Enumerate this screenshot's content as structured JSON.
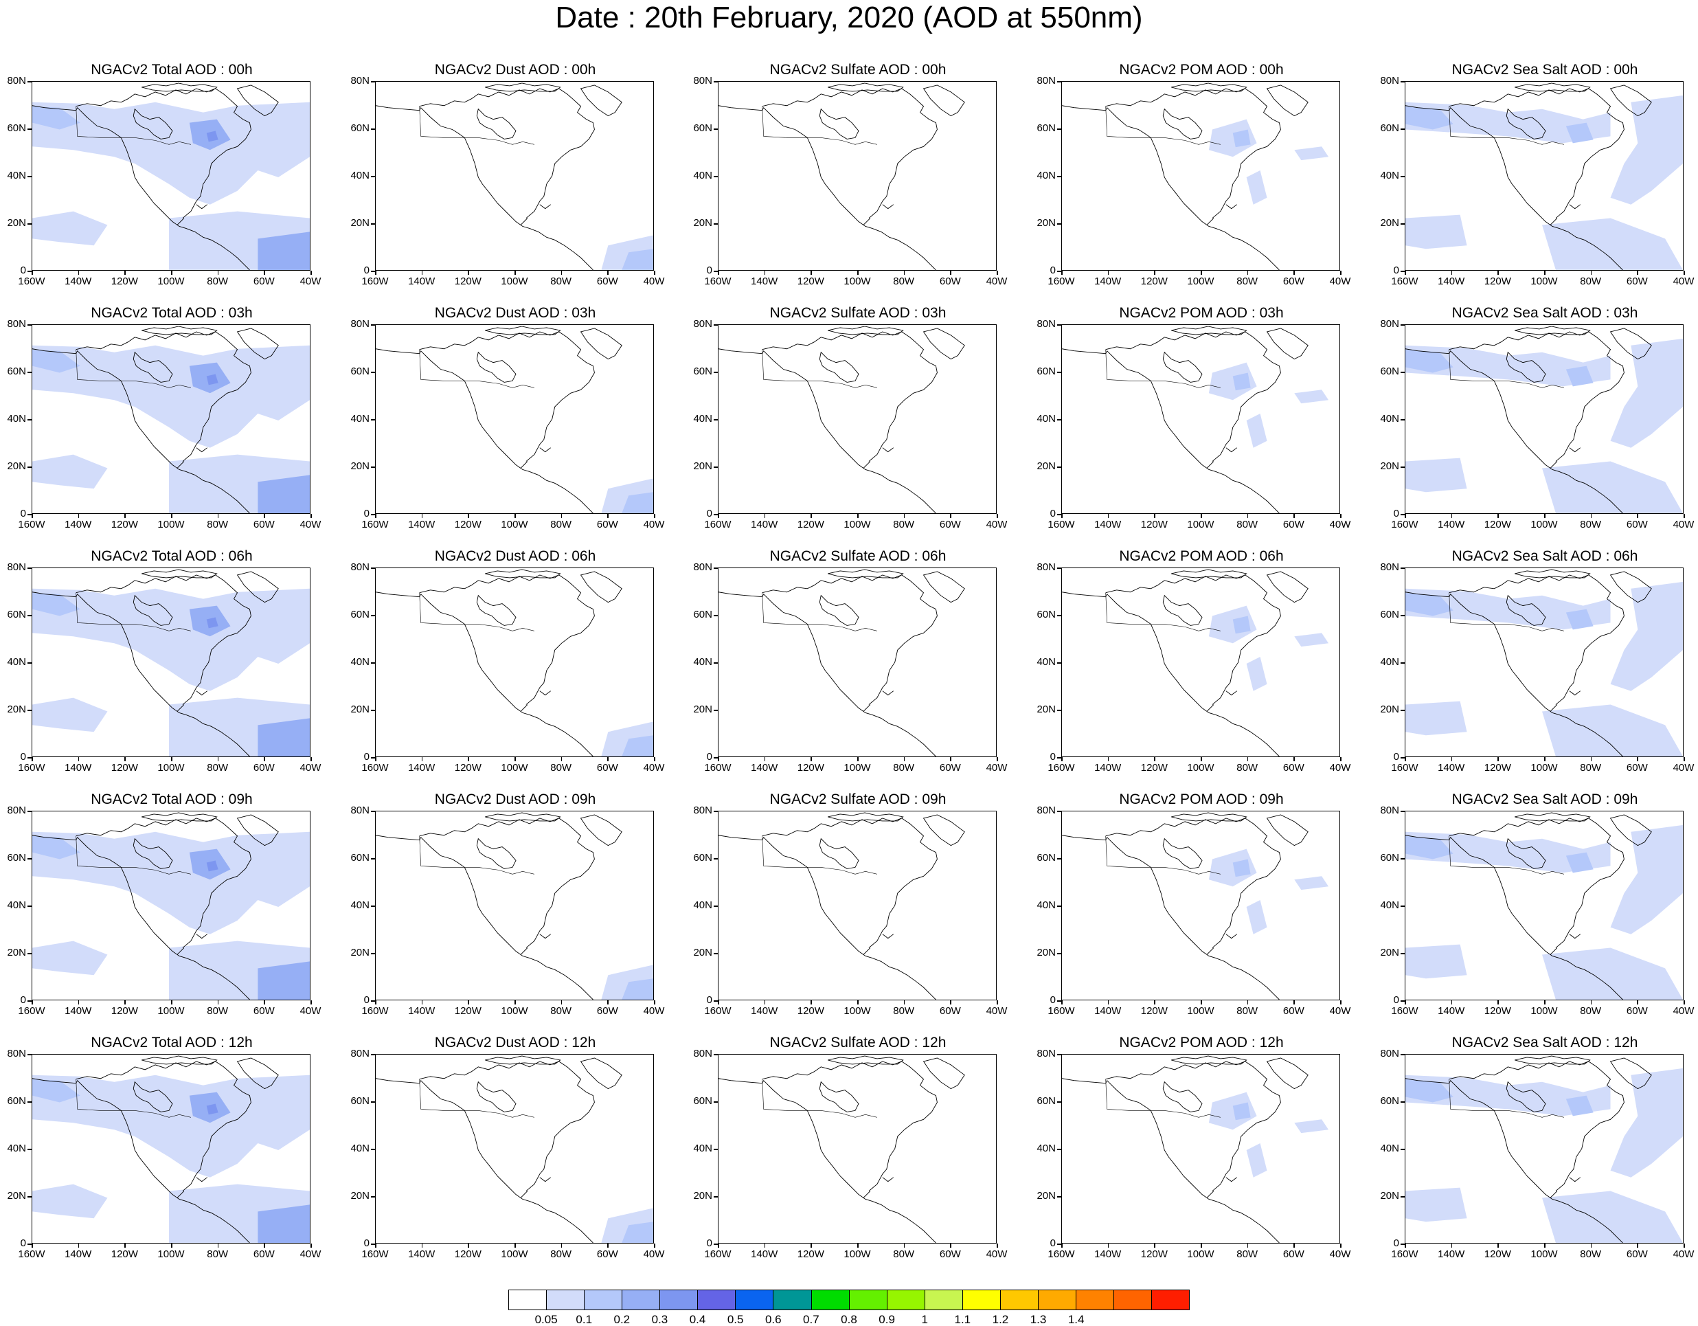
{
  "title": "Date : 20th February, 2020 (AOD at 550nm)",
  "y_ticks": [
    "80N",
    "60N",
    "40N",
    "20N",
    "0"
  ],
  "x_ticks": [
    "160W",
    "140W",
    "120W",
    "100W",
    "80W",
    "60W",
    "40W"
  ],
  "panels": [
    [
      "NGACv2 Total AOD : 00h",
      "NGACv2 Dust AOD : 00h",
      "NGACv2 Sulfate AOD : 00h",
      "NGACv2 POM AOD : 00h",
      "NGACv2 Sea Salt AOD : 00h"
    ],
    [
      "NGACv2 Total AOD : 03h",
      "NGACv2 Dust AOD : 03h",
      "NGACv2 Sulfate AOD : 03h",
      "NGACv2 POM AOD : 03h",
      "NGACv2 Sea Salt AOD : 03h"
    ],
    [
      "NGACv2 Total AOD : 06h",
      "NGACv2 Dust AOD : 06h",
      "NGACv2 Sulfate AOD : 06h",
      "NGACv2 POM AOD : 06h",
      "NGACv2 Sea Salt AOD : 06h"
    ],
    [
      "NGACv2 Total AOD : 09h",
      "NGACv2 Dust AOD : 09h",
      "NGACv2 Sulfate AOD : 09h",
      "NGACv2 POM AOD : 09h",
      "NGACv2 Sea Salt  AOD : 09h"
    ],
    [
      "NGACv2 Total AOD  : 12h",
      "NGACv2 Dust AOD : 12h",
      "NGACv2 Sulfate AOD : 12h",
      "NGACv2 POM  AOD : 12h",
      "NGACv2 Sea Salt  AOD : 12h"
    ]
  ],
  "colorbar": {
    "colors": [
      "#ffffff",
      "#d2dcfa",
      "#b4c8fa",
      "#96aff5",
      "#7d96f0",
      "#6464e6",
      "#0a64f0",
      "#009696",
      "#00dc00",
      "#64f000",
      "#96f500",
      "#c8f550",
      "#ffff00",
      "#ffc800",
      "#ffaa00",
      "#ff8200",
      "#ff6400",
      "#ff1e00"
    ],
    "labels": [
      "0.05",
      "0.1",
      "0.2",
      "0.3",
      "0.4",
      "0.5",
      "0.6",
      "0.7",
      "0.8",
      "0.9",
      "1",
      "1.1",
      "1.2",
      "1.3",
      "1.4"
    ]
  }
}
